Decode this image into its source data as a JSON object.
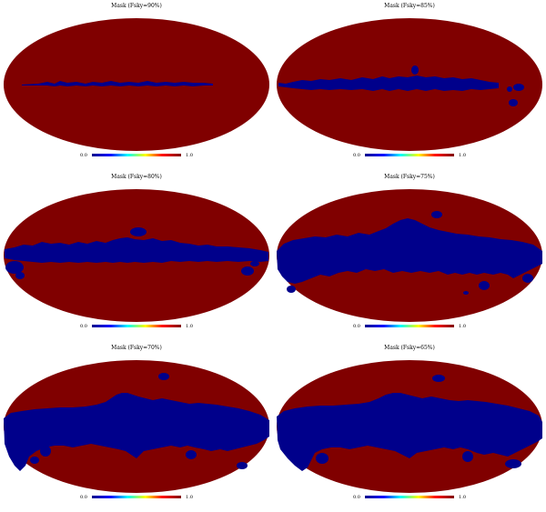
{
  "figure": {
    "colors": {
      "masked": "#00008b",
      "unmasked": "#800000",
      "colormap": [
        "#00008b",
        "#0000ff",
        "#00ffff",
        "#ffff00",
        "#ff0000",
        "#800000"
      ]
    },
    "panels": [
      {
        "title": "Mask (Fsky=90%)",
        "cbar_min": "0.0",
        "cbar_max": "1.0"
      },
      {
        "title": "Mask (Fsky=85%)",
        "cbar_min": "0.0",
        "cbar_max": "1.0"
      },
      {
        "title": "Mask (Fsky=80%)",
        "cbar_min": "0.0",
        "cbar_max": "1.0"
      },
      {
        "title": "Mask (Fsky=75%)",
        "cbar_min": "0.0",
        "cbar_max": "1.0"
      },
      {
        "title": "Mask (Fsky=70%)",
        "cbar_min": "0.0",
        "cbar_max": "1.0"
      },
      {
        "title": "Mask (Fsky=65%)",
        "cbar_min": "0.0",
        "cbar_max": "1.0"
      }
    ]
  }
}
